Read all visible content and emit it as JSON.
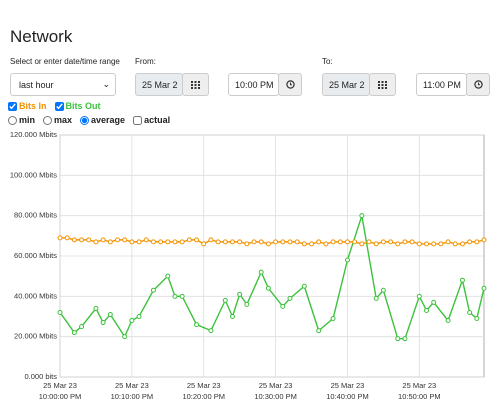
{
  "header": {
    "title": "Network"
  },
  "controls": {
    "range_label": "Select or enter date/time range",
    "range_value": "last hour",
    "from_label": "From:",
    "from_date": "25 Mar 2",
    "from_time": "10:00 PM",
    "to_label": "To:",
    "to_date": "25 Mar 2",
    "to_time": "11:00 PM",
    "modes": [
      "min",
      "max",
      "average"
    ],
    "actual": "actual"
  },
  "chart_data": {
    "type": "line",
    "xlim": [
      0,
      59
    ],
    "ylim": [
      0,
      120
    ],
    "yticks": [
      {
        "value": 0,
        "label": "0.000 bits"
      },
      {
        "value": 20,
        "label": "20.000 Mbits"
      },
      {
        "value": 40,
        "label": "40.000 Mbits"
      },
      {
        "value": 60,
        "label": "60.000 Mbits"
      },
      {
        "value": 80,
        "label": "80.000 Mbits"
      },
      {
        "value": 100,
        "label": "100.000 Mbits"
      },
      {
        "value": 120,
        "label": "120.000 Mbits"
      }
    ],
    "xticks": [
      {
        "value": 0,
        "date": "25 Mar 23",
        "time": "10:00:00 PM"
      },
      {
        "value": 10,
        "date": "25 Mar 23",
        "time": "10:10:00 PM"
      },
      {
        "value": 20,
        "date": "25 Mar 23",
        "time": "10:20:00 PM"
      },
      {
        "value": 30,
        "date": "25 Mar 23",
        "time": "10:30:00 PM"
      },
      {
        "value": 40,
        "date": "25 Mar 23",
        "time": "10:40:00 PM"
      },
      {
        "value": 50,
        "date": "25 Mar 23",
        "time": "10:50:00 PM"
      }
    ],
    "grid": true,
    "series": [
      {
        "name": "Bits In",
        "color": "#f39200",
        "markers": "hollow",
        "x": [
          0,
          1,
          2,
          3,
          4,
          5,
          6,
          7,
          8,
          9,
          10,
          11,
          12,
          13,
          14,
          15,
          16,
          17,
          18,
          19,
          20,
          21,
          22,
          23,
          24,
          25,
          26,
          27,
          28,
          29,
          30,
          31,
          32,
          33,
          34,
          35,
          36,
          37,
          38,
          39,
          40,
          41,
          42,
          43,
          44,
          45,
          46,
          47,
          48,
          49,
          50,
          51,
          52,
          53,
          54,
          55,
          56,
          57,
          58,
          59
        ],
        "values": [
          69,
          69,
          68,
          68,
          68,
          67,
          68,
          67,
          68,
          68,
          67,
          67,
          68,
          67,
          67,
          67,
          67,
          67,
          68,
          68,
          66,
          68,
          67,
          67,
          67,
          67,
          66,
          67,
          67,
          66,
          67,
          67,
          67,
          67,
          66,
          66,
          67,
          66,
          67,
          67,
          67,
          67,
          66,
          67,
          66,
          67,
          67,
          66,
          67,
          67,
          66,
          66,
          66,
          66,
          67,
          66,
          66,
          67,
          67,
          68
        ]
      },
      {
        "name": "Bits Out",
        "color": "#3cc23c",
        "markers": "hollow",
        "x": [
          0,
          2,
          3,
          5,
          6,
          7,
          9,
          10,
          11,
          13,
          15,
          16,
          17,
          19,
          21,
          23,
          24,
          25,
          26,
          28,
          29,
          31,
          32,
          34,
          36,
          38,
          40,
          42,
          44,
          45,
          47,
          48,
          50,
          51,
          52,
          54,
          56,
          57,
          58,
          59
        ],
        "values": [
          32,
          22,
          25,
          34,
          27,
          31,
          20,
          28,
          30,
          43,
          50,
          40,
          40,
          26,
          23,
          38,
          30,
          41,
          36,
          52,
          44,
          35,
          39,
          45,
          23,
          29,
          58,
          80,
          39,
          43,
          19,
          19,
          40,
          33,
          37,
          28,
          48,
          32,
          29,
          44
        ]
      }
    ]
  }
}
